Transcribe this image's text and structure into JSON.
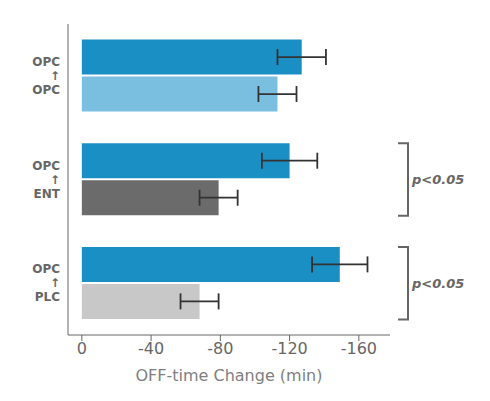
{
  "chart_data": {
    "type": "bar",
    "orientation": "horizontal",
    "categories": [
      "OPC\n↑\nOPC",
      "OPC\n↑\nENT",
      "OPC\n↑\nPLC"
    ],
    "series": [
      {
        "color": "#1a8fc4",
        "values": [
          -127,
          -120,
          -149
        ],
        "errors": [
          14,
          16,
          16
        ]
      },
      {
        "colors": [
          "#7abfdf",
          "#6b6b6b",
          "#c8c8c8"
        ],
        "values": [
          -113,
          -79,
          -68
        ],
        "errors": [
          11,
          11,
          11
        ]
      }
    ],
    "xlim": [
      8,
      -178
    ],
    "xticks": [
      0,
      -40,
      -80,
      -120,
      -160
    ],
    "xlabel": "OFF-time Change (min)",
    "grid": false,
    "annotations": [
      {
        "text": "p<0.05",
        "category": "OPC\n↑\nENT"
      },
      {
        "text": "p<0.05",
        "category": "OPC\n↑\nPLC"
      }
    ]
  }
}
